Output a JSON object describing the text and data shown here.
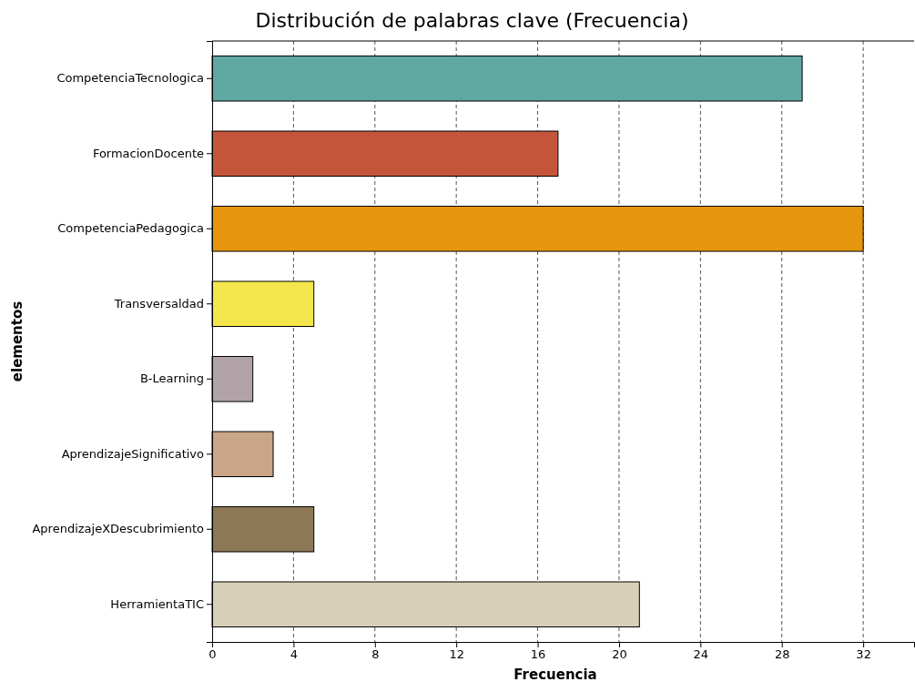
{
  "chart_data": {
    "type": "bar",
    "orientation": "horizontal",
    "title": "Distribución de palabras clave (Frecuencia)",
    "xlabel": "Frecuencia",
    "ylabel": "elementos",
    "categories": [
      "CompetenciaTecnologica",
      "FormacionDocente",
      "CompetenciaPedagogica",
      "Transversaldad",
      "B-Learning",
      "AprendizajeSignificativo",
      "AprendizajeXDescubrimiento",
      "HerramientaTIC"
    ],
    "values": [
      29,
      17,
      32,
      5,
      2,
      3,
      5,
      21
    ],
    "colors": [
      "#5fa8a2",
      "#c4553a",
      "#e6960e",
      "#f4e64d",
      "#b2a3a8",
      "#c9a688",
      "#8d7856",
      "#d8cfb8"
    ],
    "xlim": [
      0,
      34.5
    ],
    "xticks": [
      0,
      4,
      8,
      12,
      16,
      20,
      24,
      28,
      32
    ],
    "grid": "x"
  }
}
